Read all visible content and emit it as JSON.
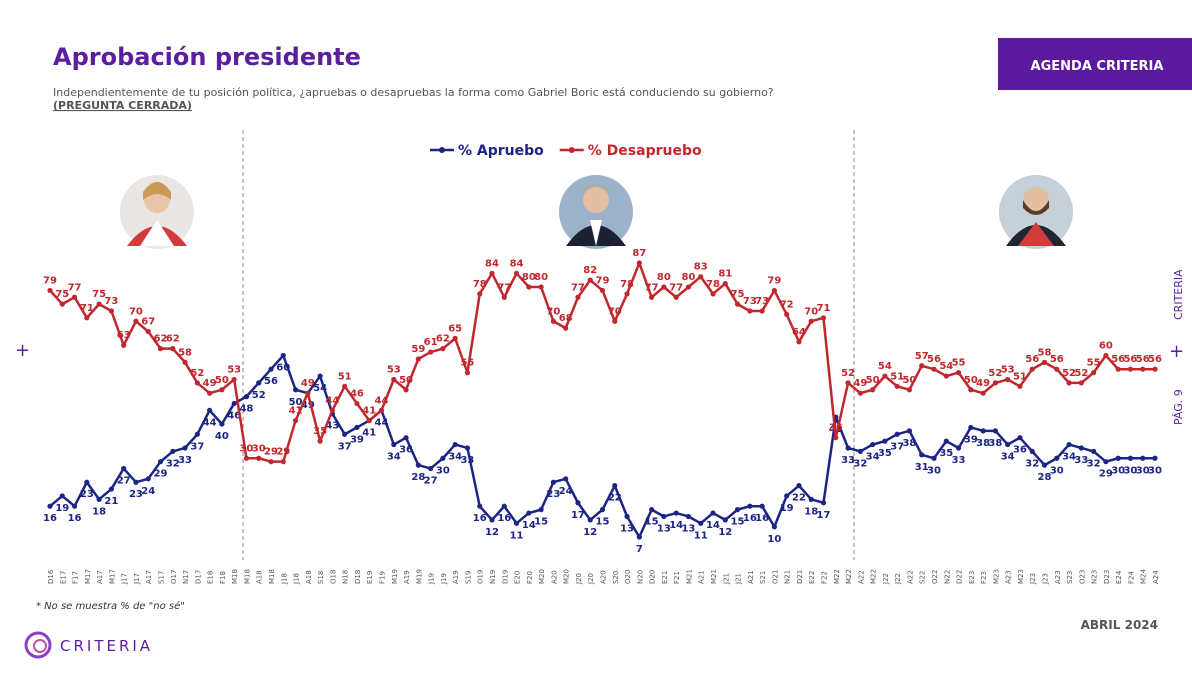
{
  "header": {
    "title": "Aprobación presidente",
    "subtitle": "Independientemente de tu posición política, ¿apruebas o desapruebas la forma como Gabriel Boric está conduciendo su gobierno?",
    "subtitle_note": "(PREGUNTA CERRADA)"
  },
  "badge": "AGENDA CRITERIA",
  "side": {
    "brand": "CRITERIA",
    "page": "PÁG. 9"
  },
  "footnote": "* No se muestra % de \"no sé\"",
  "date": "ABRIL 2024",
  "logo": "CRITERIA",
  "chart_data": {
    "type": "line",
    "categories": [
      "D16",
      "E17",
      "F17",
      "M17",
      "A17",
      "M17",
      "J17",
      "J17",
      "A17",
      "S17",
      "O17",
      "N17",
      "D17",
      "E18",
      "F18",
      "M18",
      "M18",
      "A18",
      "M18",
      "J18",
      "J18",
      "A18",
      "S18",
      "O18",
      "N18",
      "D18",
      "E19",
      "F19",
      "M19",
      "A19",
      "M19",
      "J19",
      "J19",
      "A19",
      "S19",
      "O19",
      "N19",
      "D19",
      "E20",
      "F20",
      "M20",
      "A20",
      "M20",
      "J20",
      "J20",
      "A20",
      "S20",
      "O20",
      "N20",
      "D20",
      "E21",
      "F21",
      "M21",
      "A21",
      "M21",
      "J21",
      "J21",
      "A21",
      "S21",
      "O21",
      "N21",
      "D21",
      "E22",
      "F22",
      "M22",
      "M22",
      "A22",
      "M22",
      "J22",
      "J22",
      "A22",
      "S22",
      "O22",
      "N22",
      "D22",
      "E23",
      "F23",
      "M23",
      "A23",
      "M23",
      "J23",
      "J23",
      "A23",
      "S23",
      "O23",
      "N23",
      "D23",
      "E24",
      "F24",
      "M24",
      "A24"
    ],
    "series": [
      {
        "name": "% Apruebo",
        "color": "#1c2583",
        "values": [
          16,
          19,
          16,
          23,
          18,
          21,
          27,
          23,
          24,
          29,
          32,
          33,
          37,
          44,
          40,
          46,
          48,
          52,
          56,
          60,
          50,
          49,
          54,
          43,
          37,
          39,
          41,
          44,
          34,
          36,
          28,
          27,
          30,
          34,
          33,
          16,
          12,
          16,
          11,
          14,
          15,
          23,
          24,
          17,
          12,
          15,
          22,
          13,
          7,
          15,
          13,
          14,
          13,
          11,
          14,
          12,
          15,
          16,
          16,
          10,
          19,
          22,
          18,
          17,
          42,
          33,
          32,
          34,
          35,
          37,
          38,
          31,
          30,
          35,
          33,
          39,
          38,
          38,
          34,
          36,
          32,
          28,
          30,
          34,
          33,
          32,
          29,
          30,
          30,
          30,
          30
        ]
      },
      {
        "name": "% Desapruebo",
        "color": "#c1272d",
        "values": [
          79,
          75,
          77,
          71,
          75,
          73,
          63,
          70,
          67,
          62,
          62,
          58,
          52,
          49,
          50,
          53,
          30,
          30,
          29,
          29,
          41,
          49,
          35,
          44,
          51,
          46,
          41,
          44,
          53,
          50,
          59,
          61,
          62,
          65,
          55,
          78,
          84,
          77,
          84,
          80,
          80,
          70,
          68,
          77,
          82,
          79,
          70,
          78,
          87,
          77,
          80,
          77,
          80,
          83,
          78,
          81,
          75,
          73,
          73,
          79,
          72,
          64,
          70,
          71,
          36,
          52,
          49,
          50,
          54,
          51,
          50,
          57,
          56,
          54,
          55,
          50,
          49,
          52,
          53,
          51,
          56,
          58,
          56,
          52,
          52,
          55,
          60,
          56,
          56,
          56,
          56
        ]
      }
    ],
    "ylim": [
      0,
      100
    ]
  }
}
